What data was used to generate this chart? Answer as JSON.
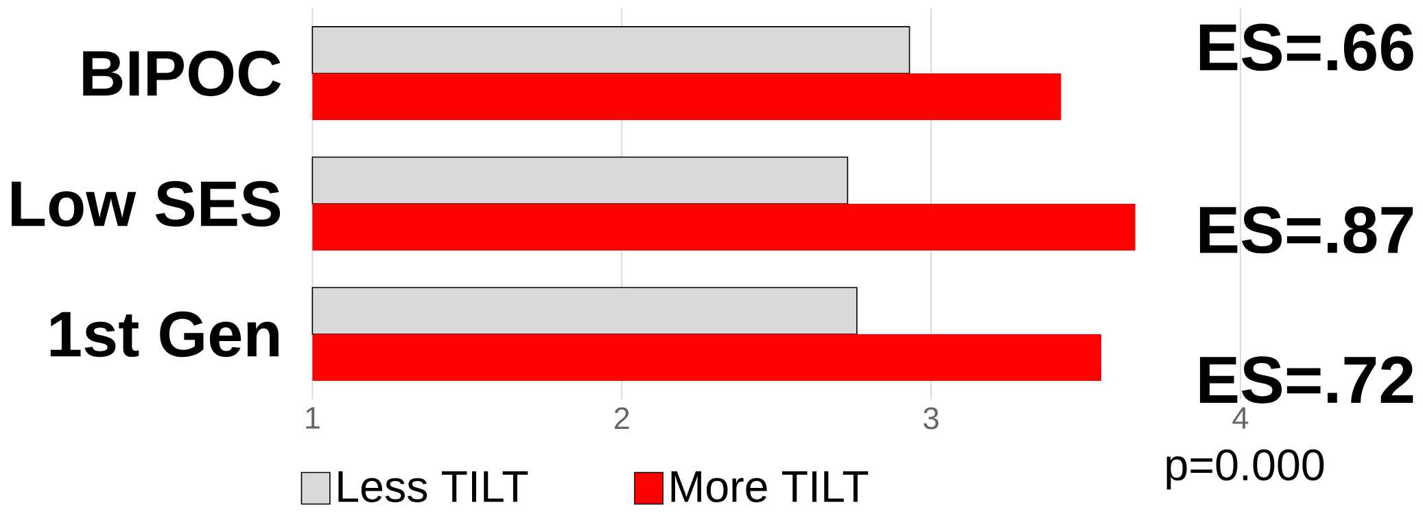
{
  "chart_data": {
    "type": "bar",
    "orientation": "horizontal",
    "categories": [
      "BIPOC",
      "Low SES",
      "1st Gen"
    ],
    "series": [
      {
        "name": "Less TILT",
        "color": "#d9d9d9",
        "values": [
          2.93,
          2.73,
          2.76
        ]
      },
      {
        "name": "More TILT",
        "color": "#ff0000",
        "values": [
          3.42,
          3.66,
          3.55
        ]
      }
    ],
    "xlim": [
      1,
      4
    ],
    "xticks": [
      1,
      2,
      3,
      4
    ],
    "grid": "x",
    "legend": "bottom",
    "annotations": [
      "ES=.66",
      "ES=.87",
      "ES=.72",
      "p=0.000"
    ]
  }
}
